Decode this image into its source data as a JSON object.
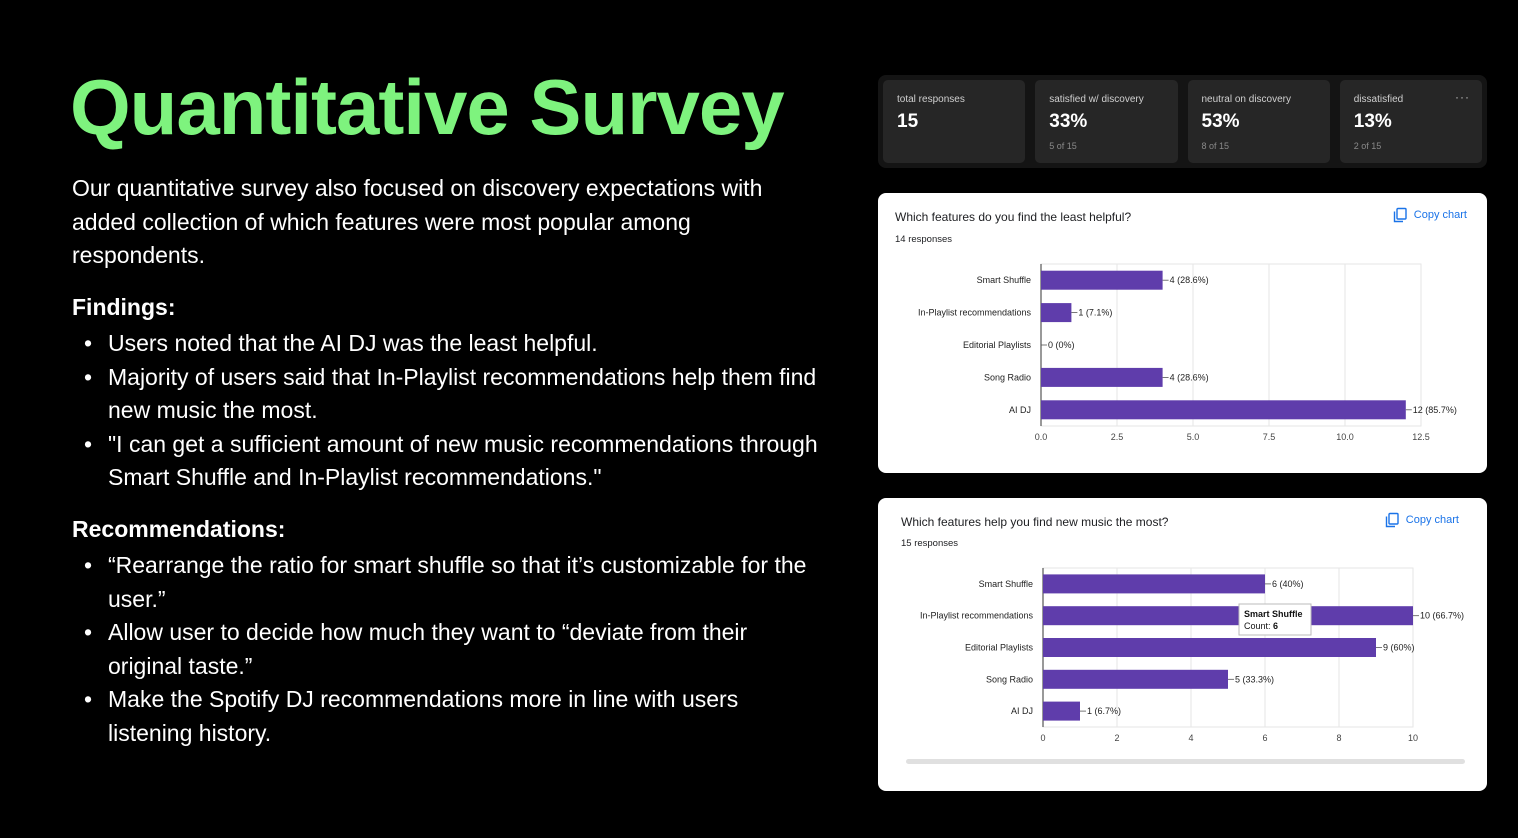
{
  "slide": {
    "title": "Quantitative Survey",
    "intro": "Our quantitative survey also focused on discovery expectations with added collection of which features were most popular among respondents.",
    "findings_heading": "Findings:",
    "findings": [
      "Users noted that the AI DJ was the least helpful.",
      "Majority of users said that In-Playlist recommendations help them find new music the most.",
      "\"I can get a sufficient amount of new music recommendations through Smart Shuffle and In-Playlist recommendations.\""
    ],
    "recommendations_heading": "Recommendations:",
    "recommendations": [
      "“Rearrange the ratio for smart shuffle so that it’s customizable for the user.”",
      "Allow user to decide how much they want to “deviate from their original taste.”",
      "Make the Spotify DJ recommendations more in line with users listening history."
    ],
    "title_color": "#7ef37e"
  },
  "stats": [
    {
      "label": "total responses",
      "value": "15",
      "sub": ""
    },
    {
      "label": "satisfied w/ discovery",
      "value": "33%",
      "sub": "5 of 15"
    },
    {
      "label": "neutral on discovery",
      "value": "53%",
      "sub": "8 of 15"
    },
    {
      "label": "dissatisfied",
      "value": "13%",
      "sub": "2 of 15"
    }
  ],
  "chart1": {
    "question": "Which features do you find the least helpful?",
    "responses": "14 responses",
    "copy_label": "Copy chart"
  },
  "chart2": {
    "question": "Which features help you find new music the most?",
    "responses": "15 responses",
    "copy_label": "Copy chart",
    "tooltip_title": "Smart Shuffle",
    "tooltip_label": "Count: ",
    "tooltip_value": "6"
  },
  "chart_data": [
    {
      "type": "bar",
      "orientation": "horizontal",
      "title": "Which features do you find the least helpful?",
      "categories": [
        "Smart Shuffle",
        "In-Playlist recommendations",
        "Editorial Playlists",
        "Song Radio",
        "AI DJ"
      ],
      "values": [
        4,
        1,
        0,
        4,
        12
      ],
      "data_labels": [
        "4 (28.6%)",
        "1 (7.1%)",
        "0 (0%)",
        "4 (28.6%)",
        "12 (85.7%)"
      ],
      "xlim": [
        0,
        12.5
      ],
      "ticks": [
        "0.0",
        "2.5",
        "5.0",
        "7.5",
        "10.0",
        "12.5"
      ],
      "tick_values": [
        0,
        2.5,
        5,
        7.5,
        10,
        12.5
      ],
      "grid": true,
      "bar_color": "#5f3dab"
    },
    {
      "type": "bar",
      "orientation": "horizontal",
      "title": "Which features help you find new music the most?",
      "categories": [
        "Smart Shuffle",
        "In-Playlist recommendations",
        "Editorial Playlists",
        "Song Radio",
        "AI DJ"
      ],
      "values": [
        6,
        10,
        9,
        5,
        1
      ],
      "data_labels": [
        "6 (40%)",
        "10 (66.7%)",
        "9 (60%)",
        "5 (33.3%)",
        "1 (6.7%)"
      ],
      "xlim": [
        0,
        10
      ],
      "ticks": [
        "0",
        "2",
        "4",
        "6",
        "8",
        "10"
      ],
      "tick_values": [
        0,
        2,
        4,
        6,
        8,
        10
      ],
      "grid": true,
      "bar_color": "#5f3dab"
    }
  ]
}
